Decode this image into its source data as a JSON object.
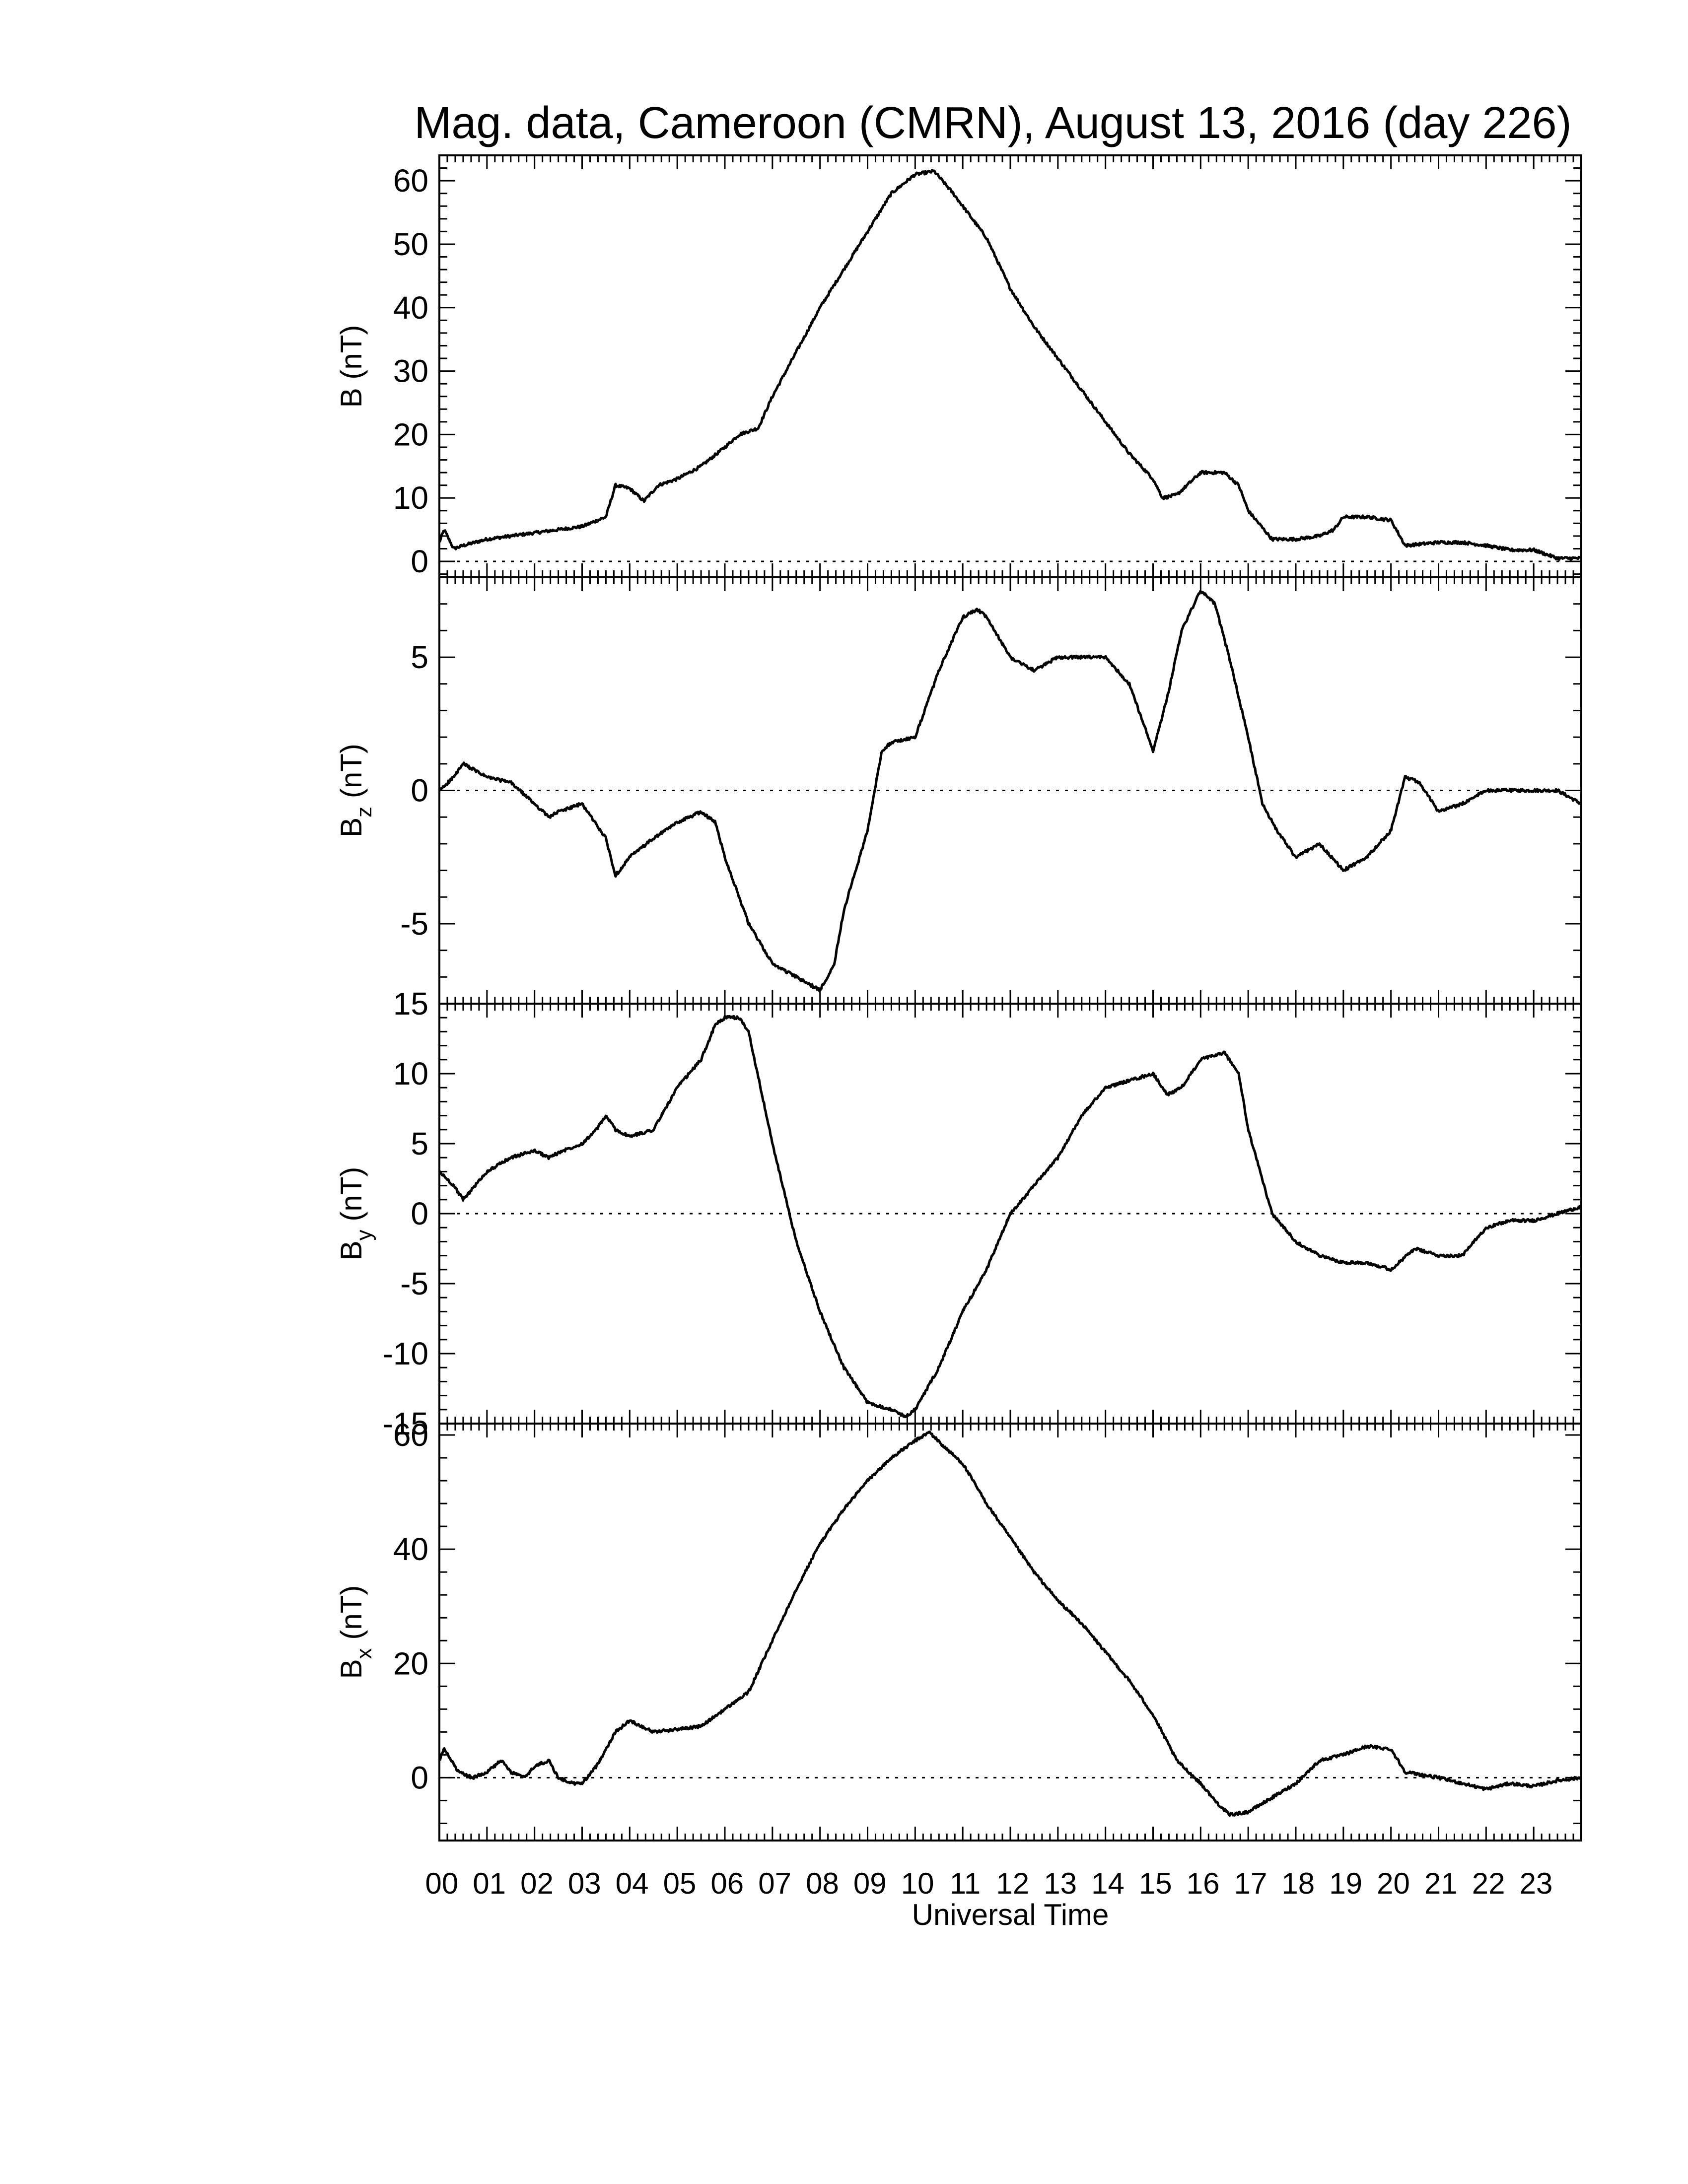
{
  "title": "Mag. data, Cameroon (CMRN), August 13, 2016 (day 226)",
  "xlabel": "Universal Time",
  "x_ticks": [
    "00",
    "01",
    "02",
    "03",
    "04",
    "05",
    "06",
    "07",
    "08",
    "09",
    "10",
    "11",
    "12",
    "13",
    "14",
    "15",
    "16",
    "17",
    "18",
    "19",
    "20",
    "21",
    "22",
    "23"
  ],
  "chart_data": [
    {
      "type": "line",
      "panel": "B",
      "ylabel_main": "B (nT)",
      "ylabel_sub": "",
      "ylabel_tail": "",
      "ylim": [
        -2.5,
        64
      ],
      "yticks": [
        0,
        10,
        20,
        30,
        40,
        50,
        60
      ],
      "x_unit": "hours UT",
      "xlim": [
        0,
        24
      ],
      "zero_line": true,
      "x": [
        0,
        0.1,
        0.3,
        0.5,
        1,
        1.5,
        2,
        2.5,
        3,
        3.5,
        3.7,
        4,
        4.3,
        4.6,
        5,
        5.5,
        6,
        6.3,
        6.7,
        7,
        7.5,
        8,
        8.5,
        9,
        9.5,
        10,
        10.4,
        10.8,
        11.5,
        12,
        12.5,
        13,
        13.5,
        14,
        14.5,
        15,
        15.2,
        15.5,
        16,
        16.5,
        16.8,
        17,
        17.5,
        18,
        18.5,
        18.8,
        19,
        19.5,
        20,
        20.3,
        21,
        21.5,
        22,
        22.5,
        23,
        23.5,
        24
      ],
      "values": [
        3,
        5,
        2,
        2.5,
        3.5,
        4,
        4.5,
        5,
        5.5,
        7,
        12,
        11.5,
        9.5,
        12,
        13,
        15,
        18,
        20,
        21,
        26,
        33,
        40,
        46,
        52,
        58,
        61,
        61.5,
        58,
        51,
        43,
        37,
        32,
        27,
        22,
        17,
        13,
        10,
        10.5,
        14,
        14,
        12,
        8,
        3.5,
        3.5,
        4,
        5,
        7,
        7,
        6.5,
        2.5,
        3,
        3,
        2.5,
        1.8,
        1.8,
        0.5,
        0.5
      ]
    },
    {
      "type": "line",
      "panel": "Bz",
      "ylabel_main": "B",
      "ylabel_sub": "z",
      "ylabel_tail": " (nT)",
      "ylim": [
        -8,
        8
      ],
      "yticks": [
        -5,
        0,
        5
      ],
      "x_unit": "hours UT",
      "xlim": [
        0,
        24
      ],
      "zero_line": true,
      "x": [
        0,
        0.3,
        0.5,
        1,
        1.5,
        2,
        2.3,
        2.5,
        3,
        3.5,
        3.7,
        4,
        4.5,
        5,
        5.5,
        5.8,
        6,
        6.5,
        7,
        7.5,
        8,
        8.3,
        8.5,
        9,
        9.3,
        9.5,
        10,
        10.5,
        11,
        11.3,
        11.5,
        12,
        12.5,
        13,
        13.5,
        14,
        14.5,
        14.8,
        15,
        15.3,
        15.6,
        16,
        16.3,
        16.6,
        17,
        17.3,
        17.6,
        18,
        18.5,
        19,
        19.5,
        20,
        20.3,
        20.6,
        21,
        21.5,
        22,
        22.5,
        23,
        23.5,
        24
      ],
      "values": [
        0,
        0.5,
        1,
        0.5,
        0.3,
        -0.5,
        -1,
        -0.8,
        -0.5,
        -1.8,
        -3.2,
        -2.5,
        -1.8,
        -1.2,
        -0.8,
        -1.2,
        -2.5,
        -5,
        -6.5,
        -7,
        -7.5,
        -6.5,
        -4.5,
        -1.5,
        1.5,
        1.8,
        2,
        4.5,
        6.5,
        6.8,
        6.5,
        5,
        4.5,
        5,
        5,
        5,
        4,
        2.5,
        1.5,
        3.5,
        6,
        7.5,
        7,
        5,
        2,
        -0.5,
        -1.5,
        -2.5,
        -2,
        -3,
        -2.5,
        -1.5,
        0.5,
        0.3,
        -0.8,
        -0.5,
        0,
        0,
        0,
        0,
        -0.5
      ]
    },
    {
      "type": "line",
      "panel": "By",
      "ylabel_main": "B",
      "ylabel_sub": "y",
      "ylabel_tail": " (nT)",
      "ylim": [
        -15,
        15
      ],
      "yticks": [
        -15,
        -10,
        -5,
        0,
        5,
        10,
        15
      ],
      "x_unit": "hours UT",
      "xlim": [
        0,
        24
      ],
      "zero_line": true,
      "x": [
        0,
        0.3,
        0.5,
        1,
        1.5,
        2,
        2.3,
        2.6,
        3,
        3.3,
        3.5,
        3.7,
        4,
        4.5,
        5,
        5.5,
        5.8,
        6,
        6.3,
        6.5,
        7,
        7.5,
        8,
        8.5,
        9,
        9.5,
        9.8,
        10,
        10.5,
        11,
        11.5,
        12,
        12.5,
        13,
        13.5,
        14,
        14.5,
        15,
        15.3,
        15.6,
        16,
        16.5,
        16.8,
        17,
        17.5,
        18,
        18.5,
        19,
        19.5,
        20,
        20.5,
        21,
        21.5,
        22,
        22.5,
        23,
        23.5,
        24
      ],
      "values": [
        3,
        2,
        1,
        3,
        4,
        4.5,
        4,
        4.5,
        5,
        6,
        7,
        6,
        5.5,
        6,
        9,
        11,
        13.5,
        14,
        14,
        13,
        5,
        -2,
        -7,
        -11,
        -13.5,
        -14,
        -14.5,
        -14,
        -11,
        -7,
        -4,
        0,
        2,
        4,
        7,
        9,
        9.5,
        10,
        8.5,
        9,
        11,
        11.5,
        10,
        6,
        0,
        -2,
        -3,
        -3.5,
        -3.5,
        -4,
        -2.5,
        -3,
        -3,
        -1,
        -0.5,
        -0.5,
        0,
        0.5
      ]
    },
    {
      "type": "line",
      "panel": "Bx",
      "ylabel_main": "B",
      "ylabel_sub": "x",
      "ylabel_tail": " (nT)",
      "ylim": [
        -11,
        62
      ],
      "yticks": [
        0,
        20,
        40,
        60
      ],
      "x_unit": "hours UT",
      "xlim": [
        0,
        24
      ],
      "zero_line": true,
      "x": [
        0,
        0.1,
        0.4,
        0.7,
        1,
        1.3,
        1.5,
        1.8,
        2,
        2.3,
        2.5,
        2.8,
        3,
        3.3,
        3.7,
        4,
        4.5,
        5,
        5.5,
        6,
        6.5,
        7,
        7.5,
        8,
        8.5,
        9,
        9.5,
        10,
        10.3,
        10.6,
        11,
        11.5,
        12,
        12.5,
        13,
        13.5,
        14,
        14.5,
        15,
        15.5,
        16,
        16.3,
        16.6,
        17,
        17.5,
        18,
        18.5,
        19,
        19.5,
        20,
        20.3,
        21,
        21.5,
        22,
        22.5,
        23,
        23.5,
        24
      ],
      "values": [
        3,
        5,
        1,
        0,
        1,
        3,
        1,
        0,
        2,
        3,
        0,
        -1,
        -1,
        2,
        8,
        10,
        8,
        8.5,
        9,
        12,
        15,
        24,
        33,
        41,
        47,
        52,
        56,
        59,
        60.5,
        58,
        55,
        48,
        42,
        36,
        31,
        27,
        22,
        17,
        11,
        3,
        -1,
        -4,
        -6.5,
        -6,
        -3.5,
        -1,
        3,
        4,
        5.5,
        5,
        1,
        0,
        -1,
        -2,
        -1,
        -1.5,
        -0.5,
        0
      ]
    }
  ]
}
